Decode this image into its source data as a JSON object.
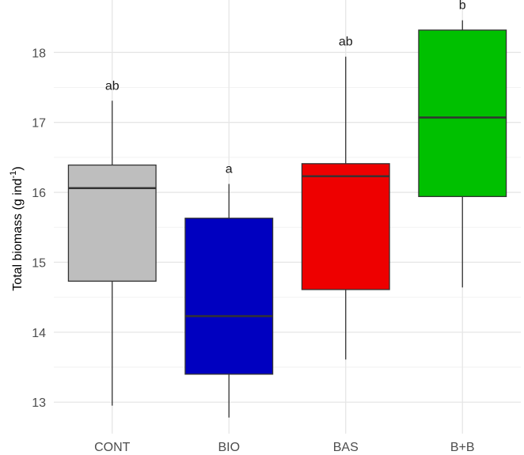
{
  "chart_data": {
    "type": "boxplot",
    "ylabel": {
      "main": "Total biomass (g ind",
      "superscript": "-1",
      "close": ")"
    },
    "ylim": [
      12.55,
      18.75
    ],
    "yticks": [
      13,
      14,
      15,
      16,
      17,
      18
    ],
    "grid": true,
    "categories": [
      "CONT",
      "BIO",
      "BAS",
      "B+B"
    ],
    "boxes": [
      {
        "category": "CONT",
        "min": 12.95,
        "q1": 14.73,
        "median": 16.06,
        "q3": 16.39,
        "max": 17.31,
        "letter": "ab",
        "color": "#bebebe"
      },
      {
        "category": "BIO",
        "min": 12.78,
        "q1": 13.4,
        "median": 14.23,
        "q3": 15.63,
        "max": 16.12,
        "letter": "a",
        "color": "#0000c0"
      },
      {
        "category": "BAS",
        "min": 13.61,
        "q1": 14.61,
        "median": 16.23,
        "q3": 16.41,
        "max": 17.94,
        "letter": "ab",
        "color": "#ee0000"
      },
      {
        "category": "B+B",
        "min": 14.64,
        "q1": 15.94,
        "median": 17.07,
        "q3": 18.32,
        "max": 18.46,
        "letter": "b",
        "color": "#00c000"
      }
    ]
  }
}
